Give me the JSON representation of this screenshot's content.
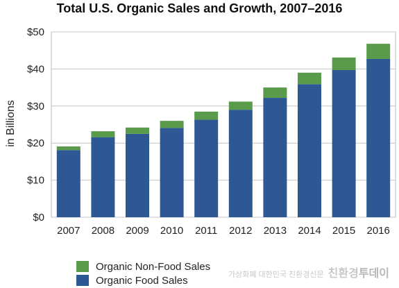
{
  "chart_data": {
    "type": "bar",
    "stacked": true,
    "title": "Total U.S. Organic Sales and Growth, 2007–2016",
    "ylabel": "in Billions",
    "xlabel": "",
    "categories": [
      "2007",
      "2008",
      "2009",
      "2010",
      "2011",
      "2012",
      "2013",
      "2014",
      "2015",
      "2016"
    ],
    "series": [
      {
        "name": "Organic Food Sales",
        "color": "#2e5893",
        "values": [
          18.1,
          21.6,
          22.5,
          24.1,
          26.3,
          29.0,
          32.2,
          35.9,
          39.7,
          42.7
        ]
      },
      {
        "name": "Organic Non-Food Sales",
        "color": "#5a9a4b",
        "values": [
          1.0,
          1.6,
          1.7,
          1.9,
          2.2,
          2.2,
          2.8,
          3.1,
          3.4,
          4.1
        ]
      }
    ],
    "ylim": [
      0,
      50
    ],
    "yticks": [
      0,
      10,
      20,
      30,
      40,
      50
    ],
    "ytick_labels": [
      "$0",
      "$10",
      "$20",
      "$30",
      "$40",
      "$50"
    ],
    "grid": true,
    "legend_position": "bottom-left"
  },
  "watermark": {
    "small_text": "가상화폐 대한민국 친환경신문",
    "brand_left": "친환경",
    "brand_right": "투데이"
  }
}
